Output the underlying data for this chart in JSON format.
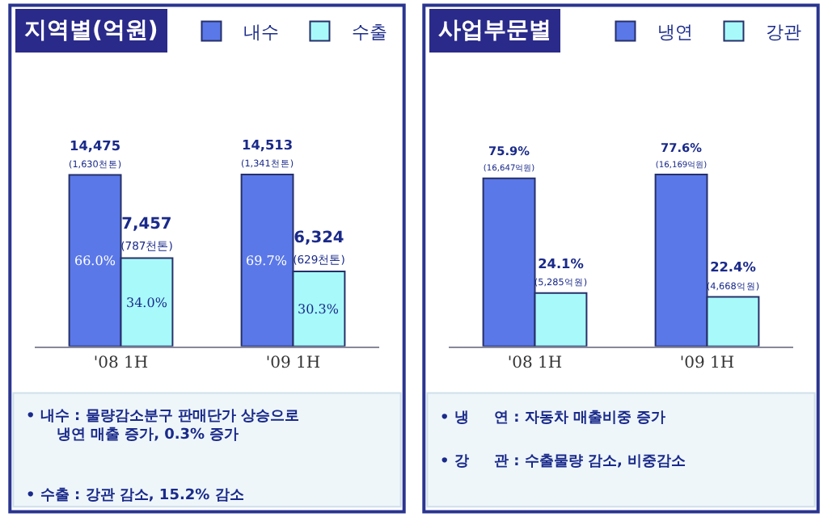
{
  "chart_data": [
    {
      "type": "bar",
      "title": "지역별(억원)",
      "categories": [
        "'08 1H",
        "'09 1H"
      ],
      "legend": "top right",
      "tick_labels": "x",
      "series": [
        {
          "name": "내수",
          "color": "#5a78e8",
          "values": [
            14475,
            14513
          ],
          "value_labels": [
            "14,475\n(1,630천톤)",
            "14,513\n(1,341천톤)"
          ]
        },
        {
          "name": "수출",
          "color": "#a8fafa",
          "values": [
            7457,
            6324
          ],
          "value_labels": [
            "7,457\n(787천톤)",
            "6,324\n(629천톤)"
          ]
        }
      ],
      "annotations": [
        {
          "text": "66.0%",
          "x": "'08 1H",
          "y": 7237
        },
        {
          "text": "34.0%",
          "x": "'08 1H",
          "y": 3728
        },
        {
          "text": "69.7%",
          "x": "'09 1H",
          "y": 7256
        },
        {
          "text": "30.3%",
          "x": "'09 1H",
          "y": 3162
        },
        "• 내수 : 물량감소분구 판매단가 상승으로\n냉연 매출 증가, 0.3% 증가",
        "• 수출 : 강관 감소, 15.2% 감소"
      ]
    },
    {
      "type": "bar",
      "title": "사업부문별",
      "categories": [
        "'08 1H",
        "'09 1H"
      ],
      "legend": "top right",
      "tick_labels": "x",
      "series": [
        {
          "name": "냉연",
          "color": "#5a78e8",
          "values": [
            75.9,
            77.6
          ],
          "value_labels": [
            "75.9%\n(16,647억원)",
            "77.6%\n(16,169억원)"
          ]
        },
        {
          "name": "강관",
          "color": "#a8fafa",
          "values": [
            24.1,
            22.4
          ],
          "value_labels": [
            "24.1%\n(5,285억원)",
            "22.4%\n(4,668억원)"
          ]
        }
      ],
      "annotations": [
        "• 냉     연 : 자동차 매출비중 증가",
        "• 강     관 : 수출물량 감소, 비중감소"
      ]
    }
  ]
}
